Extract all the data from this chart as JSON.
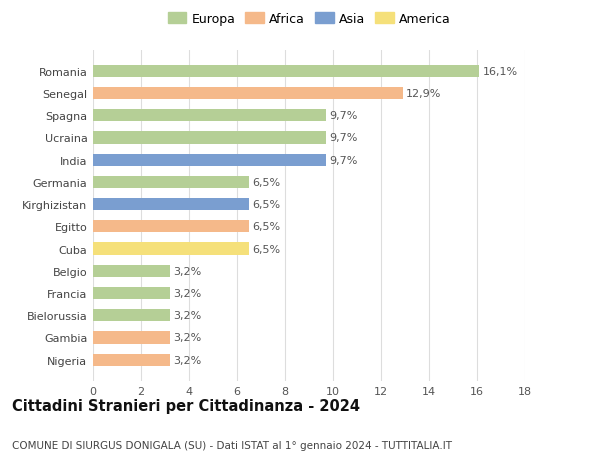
{
  "categories": [
    "Nigeria",
    "Gambia",
    "Bielorussia",
    "Francia",
    "Belgio",
    "Cuba",
    "Egitto",
    "Kirghizistan",
    "Germania",
    "India",
    "Ucraina",
    "Spagna",
    "Senegal",
    "Romania"
  ],
  "values": [
    3.2,
    3.2,
    3.2,
    3.2,
    3.2,
    6.5,
    6.5,
    6.5,
    6.5,
    9.7,
    9.7,
    9.7,
    12.9,
    16.1
  ],
  "labels": [
    "3,2%",
    "3,2%",
    "3,2%",
    "3,2%",
    "3,2%",
    "6,5%",
    "6,5%",
    "6,5%",
    "6,5%",
    "9,7%",
    "9,7%",
    "9,7%",
    "12,9%",
    "16,1%"
  ],
  "colors": [
    "#f5b98a",
    "#f5b98a",
    "#b5cf96",
    "#b5cf96",
    "#b5cf96",
    "#f5e07a",
    "#f5b98a",
    "#7a9ed0",
    "#b5cf96",
    "#7a9ed0",
    "#b5cf96",
    "#b5cf96",
    "#f5b98a",
    "#b5cf96"
  ],
  "continent_colors": {
    "Europa": "#b5cf96",
    "Africa": "#f5b98a",
    "Asia": "#7a9ed0",
    "America": "#f5e07a"
  },
  "legend_labels": [
    "Europa",
    "Africa",
    "Asia",
    "America"
  ],
  "title": "Cittadini Stranieri per Cittadinanza - 2024",
  "subtitle": "COMUNE DI SIURGUS DONIGALA (SU) - Dati ISTAT al 1° gennaio 2024 - TUTTITALIA.IT",
  "xlim": [
    0,
    18
  ],
  "xticks": [
    0,
    2,
    4,
    6,
    8,
    10,
    12,
    14,
    16,
    18
  ],
  "bg_color": "#ffffff",
  "grid_color": "#dddddd",
  "bar_height": 0.55,
  "label_fontsize": 8.0,
  "tick_fontsize": 8.0,
  "title_fontsize": 10.5,
  "subtitle_fontsize": 7.5,
  "legend_fontsize": 9.0
}
